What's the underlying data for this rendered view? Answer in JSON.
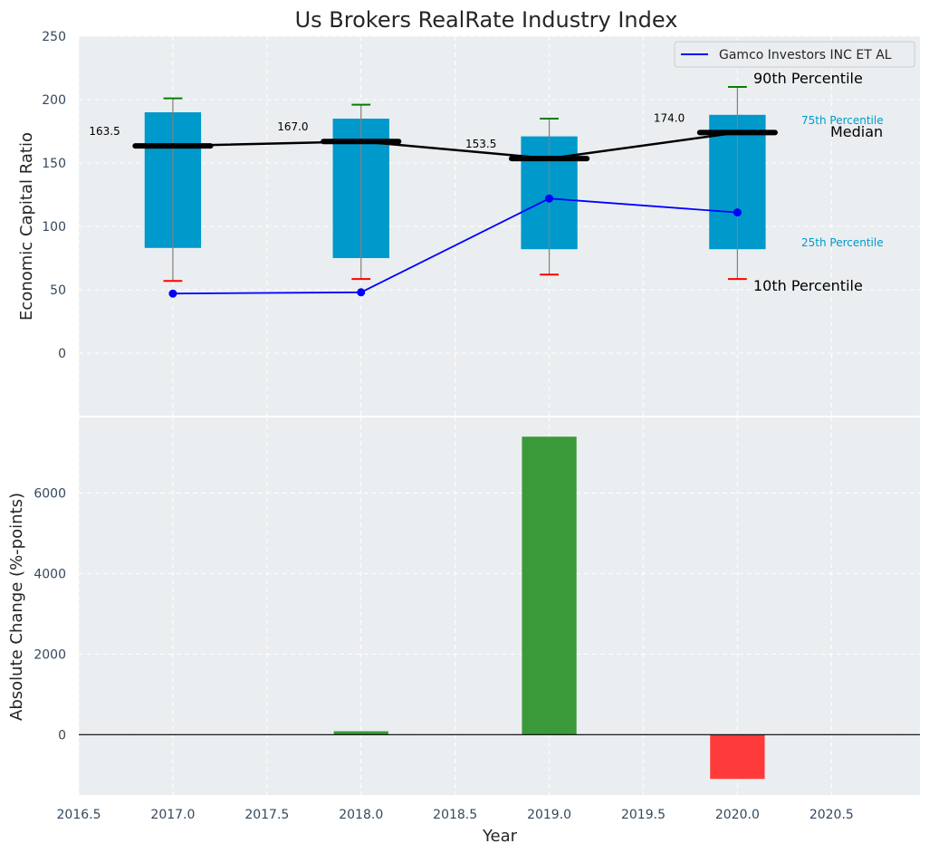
{
  "chart_data": [
    {
      "type": "box",
      "title": "Us Brokers RealRate Industry Index",
      "ylabel": "Economic Capital Ratio",
      "ylim": [
        -50,
        250
      ],
      "yticks": [
        0,
        50,
        100,
        150,
        200,
        250
      ],
      "x": [
        2017.0,
        2018.0,
        2019.0,
        2020.0
      ],
      "p10": [
        57,
        58.5,
        62,
        58.5
      ],
      "p25": [
        83,
        75,
        82,
        82
      ],
      "median": [
        163.5,
        167.0,
        153.5,
        174.0
      ],
      "p75": [
        190,
        185,
        171,
        188
      ],
      "p90": [
        201,
        196,
        185,
        210
      ],
      "median_labels": [
        "163.5",
        "167.0",
        "153.5",
        "174.0"
      ],
      "series": [
        {
          "name": "Gamco Investors INC ET AL",
          "values": [
            47,
            48,
            122,
            111
          ],
          "color": "#0000ff"
        }
      ],
      "annotations": {
        "p90": "90th Percentile",
        "p75": "75th Percentile",
        "median": "Median",
        "p25": "25th Percentile",
        "p10": "10th Percentile"
      },
      "colors": {
        "box": "#0099cc",
        "median": "#000000",
        "p90_cap": "#008000",
        "p10_cap": "#ff0000",
        "whisker": "#808080"
      },
      "grid": true,
      "legend": "top-right"
    },
    {
      "type": "bar",
      "ylabel": "Absolute Change (%-points)",
      "xlabel": "Year",
      "ylim": [
        -1500,
        7900
      ],
      "yticks": [
        0,
        2000,
        4000,
        6000
      ],
      "x": [
        2018.0,
        2019.0,
        2020.0
      ],
      "values": [
        85,
        7400,
        -1100
      ],
      "xlim": [
        2016.5,
        2020.97
      ],
      "xticks": [
        "2016.5",
        "2017.0",
        "2017.5",
        "2018.0",
        "2018.5",
        "2019.0",
        "2019.5",
        "2020.0",
        "2020.5"
      ],
      "colors": {
        "positive": "#3a9a3a",
        "negative": "#ff3a3a"
      },
      "grid": true
    }
  ]
}
